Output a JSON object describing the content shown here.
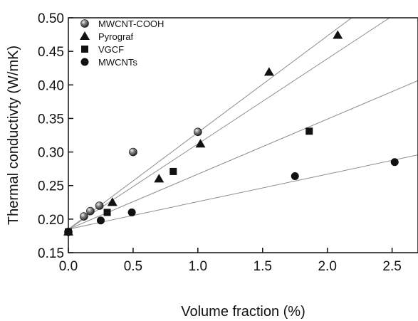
{
  "chart_data": {
    "type": "scatter",
    "title": "",
    "xlabel": "Volume fraction (%)",
    "ylabel": "Thermal conductivty (W/mK)",
    "xlim": [
      0.0,
      2.7
    ],
    "ylim": [
      0.15,
      0.5
    ],
    "xticks": [
      "0.0",
      "0.5",
      "1.0",
      "1.5",
      "2.0",
      "2.5"
    ],
    "yticks": [
      "0.15",
      "0.20",
      "0.25",
      "0.30",
      "0.35",
      "0.40",
      "0.45",
      "0.50"
    ],
    "grid": false,
    "legend_position": "top-left",
    "series": [
      {
        "name": "MWCNT-COOH",
        "marker": "shaded-sphere",
        "x": [
          0.0,
          0.12,
          0.17,
          0.24,
          0.5,
          1.0
        ],
        "y": [
          0.181,
          0.204,
          0.212,
          0.22,
          0.3,
          0.33
        ],
        "fit": {
          "intercept": 0.185,
          "slope": 0.144
        }
      },
      {
        "name": "Pyrograf",
        "marker": "triangle",
        "x": [
          0.0,
          0.34,
          0.7,
          1.02,
          1.55,
          2.08
        ],
        "y": [
          0.181,
          0.225,
          0.26,
          0.312,
          0.419,
          0.474
        ],
        "fit": {
          "intercept": 0.185,
          "slope": 0.127
        }
      },
      {
        "name": "VGCF",
        "marker": "square",
        "x": [
          0.0,
          0.3,
          0.81,
          1.86
        ],
        "y": [
          0.181,
          0.21,
          0.271,
          0.331
        ],
        "fit": {
          "intercept": 0.185,
          "slope": 0.082
        }
      },
      {
        "name": "MWCNTs",
        "marker": "circle",
        "x": [
          0.0,
          0.25,
          0.49,
          1.75,
          2.52
        ],
        "y": [
          0.181,
          0.198,
          0.21,
          0.264,
          0.285
        ],
        "fit": {
          "intercept": 0.185,
          "slope": 0.041
        }
      }
    ]
  },
  "colors": {
    "marker": "#111111",
    "fit_line": "#8c8c8c",
    "axis": "#111111"
  }
}
